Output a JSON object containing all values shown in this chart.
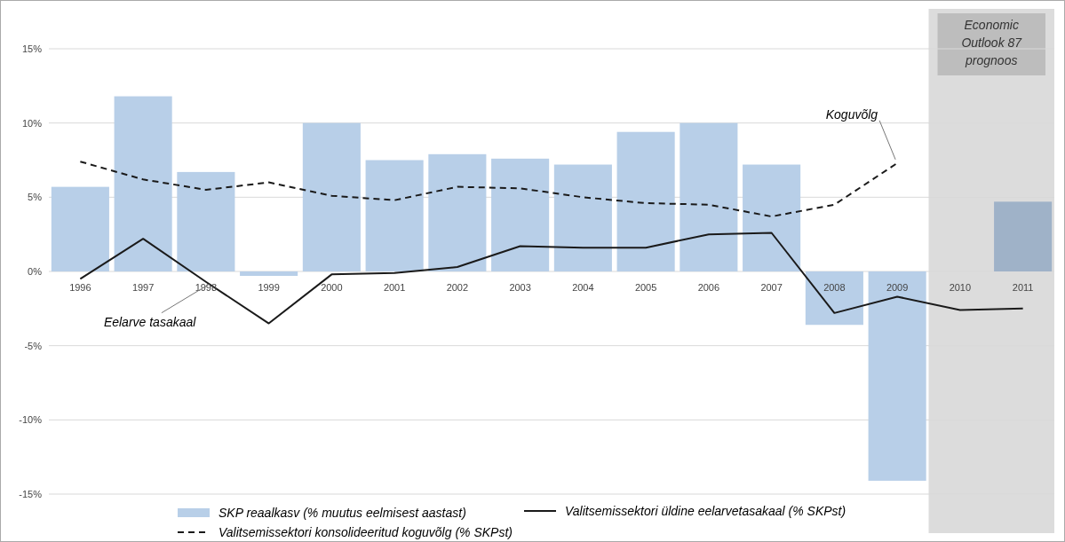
{
  "chart_data": {
    "type": "bar",
    "categories": [
      "1996",
      "1997",
      "1998",
      "1999",
      "2000",
      "2001",
      "2002",
      "2003",
      "2004",
      "2005",
      "2006",
      "2007",
      "2008",
      "2009",
      "2010",
      "2011"
    ],
    "series": [
      {
        "name": "SKP reaalkasv (% muutus eelmisest aastast)",
        "color": "#b8cfe8",
        "colors": [
          "#b8cfe8",
          "#b8cfe8",
          "#b8cfe8",
          "#b8cfe8",
          "#b8cfe8",
          "#b8cfe8",
          "#b8cfe8",
          "#b8cfe8",
          "#b8cfe8",
          "#b8cfe8",
          "#b8cfe8",
          "#b8cfe8",
          "#b8cfe8",
          "#b8cfe8",
          null,
          "#9fb2c8"
        ],
        "values": [
          5.7,
          11.8,
          6.7,
          -0.3,
          10.0,
          7.5,
          7.9,
          7.6,
          7.2,
          9.4,
          10.0,
          7.2,
          -3.6,
          -14.1,
          null,
          4.7
        ]
      },
      {
        "type": "line",
        "name": "Valitsemissektori üldine eelarvetasakaal (% SKPst)",
        "color": "#1a1a1a",
        "line_style": "solid",
        "values": [
          -0.5,
          2.2,
          -0.7,
          -3.5,
          -0.2,
          -0.1,
          0.3,
          1.7,
          1.6,
          1.6,
          2.5,
          2.6,
          -2.8,
          -1.7,
          -2.6,
          -2.5
        ]
      },
      {
        "type": "line",
        "name": "Valitsemissektori konsolideeritud koguvõlg (% SKPst)",
        "color": "#1a1a1a",
        "line_style": "dashed",
        "values": [
          7.4,
          6.2,
          5.5,
          6.0,
          5.1,
          4.8,
          5.7,
          5.6,
          5.0,
          4.6,
          4.5,
          3.7,
          4.5,
          7.3,
          null,
          null
        ]
      }
    ],
    "ylim": [
      -15,
      15
    ],
    "yticks": [
      {
        "value": -15,
        "label": "-15%"
      },
      {
        "value": -10,
        "label": "-10%"
      },
      {
        "value": -5,
        "label": "-5%"
      },
      {
        "value": 0,
        "label": "0%"
      },
      {
        "value": 5,
        "label": "5%"
      },
      {
        "value": 10,
        "label": "10%"
      },
      {
        "value": 15,
        "label": "15%"
      }
    ],
    "grid": "y",
    "bands": [
      {
        "axis": "x",
        "from": "2010",
        "to": "2011",
        "label": "Economic Outlook 87 prognoos",
        "color": "#dcdcdc"
      }
    ],
    "annotations": [
      {
        "text": "Koguvõlg",
        "x": "2009",
        "y": 7.3
      },
      {
        "text": "Eelarve tasakaal",
        "x": "1998",
        "y": -0.7
      }
    ],
    "legend": "bottom"
  }
}
